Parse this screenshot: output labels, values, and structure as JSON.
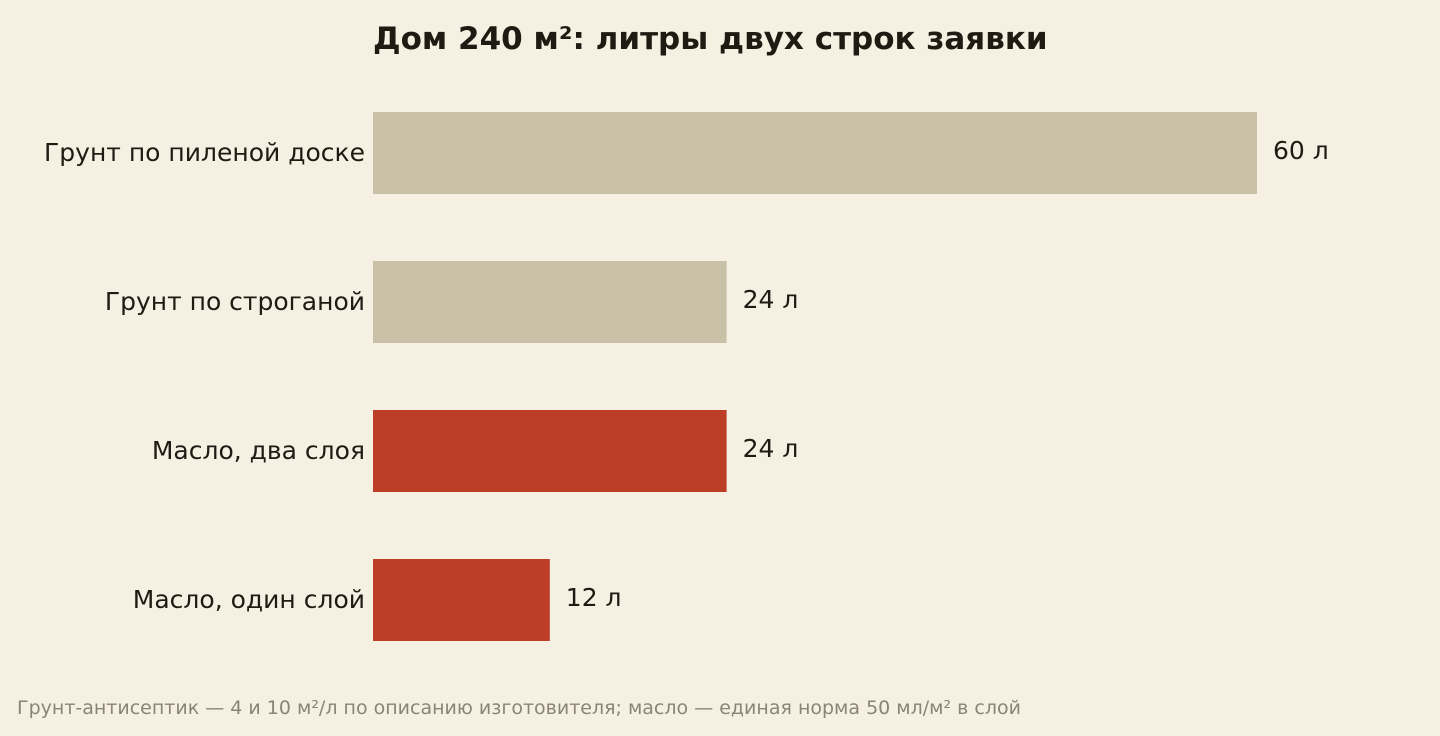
{
  "chart_data": {
    "type": "bar",
    "orientation": "horizontal",
    "title": "Дом 240 м²: литры двух строк заявки",
    "footnote": "Грунт-антисептик — 4 и 10 м²/л по описанию изготовителя; масло — единая норма 50 мл/м² в слой",
    "categories": [
      "Грунт по пиленой доске",
      "Грунт по строганой",
      "Масло, два слоя",
      "Масло, один слой"
    ],
    "values": [
      60,
      24,
      24,
      12
    ],
    "value_labels": [
      "60 л",
      "24 л",
      "24 л",
      "12 л"
    ],
    "bar_colors": [
      "#c9c0a8",
      "#c9c0a8",
      "#bc3e27",
      "#bc3e27"
    ],
    "xlim": [
      0,
      60
    ],
    "grid": false,
    "legend": "none",
    "xlabel": "",
    "ylabel": ""
  },
  "colors": {
    "background": "#f6f0e3",
    "text": "#1f1a12",
    "footnote": "#8a8478",
    "primer": "#c9c0a8",
    "oil": "#bc3e27"
  }
}
